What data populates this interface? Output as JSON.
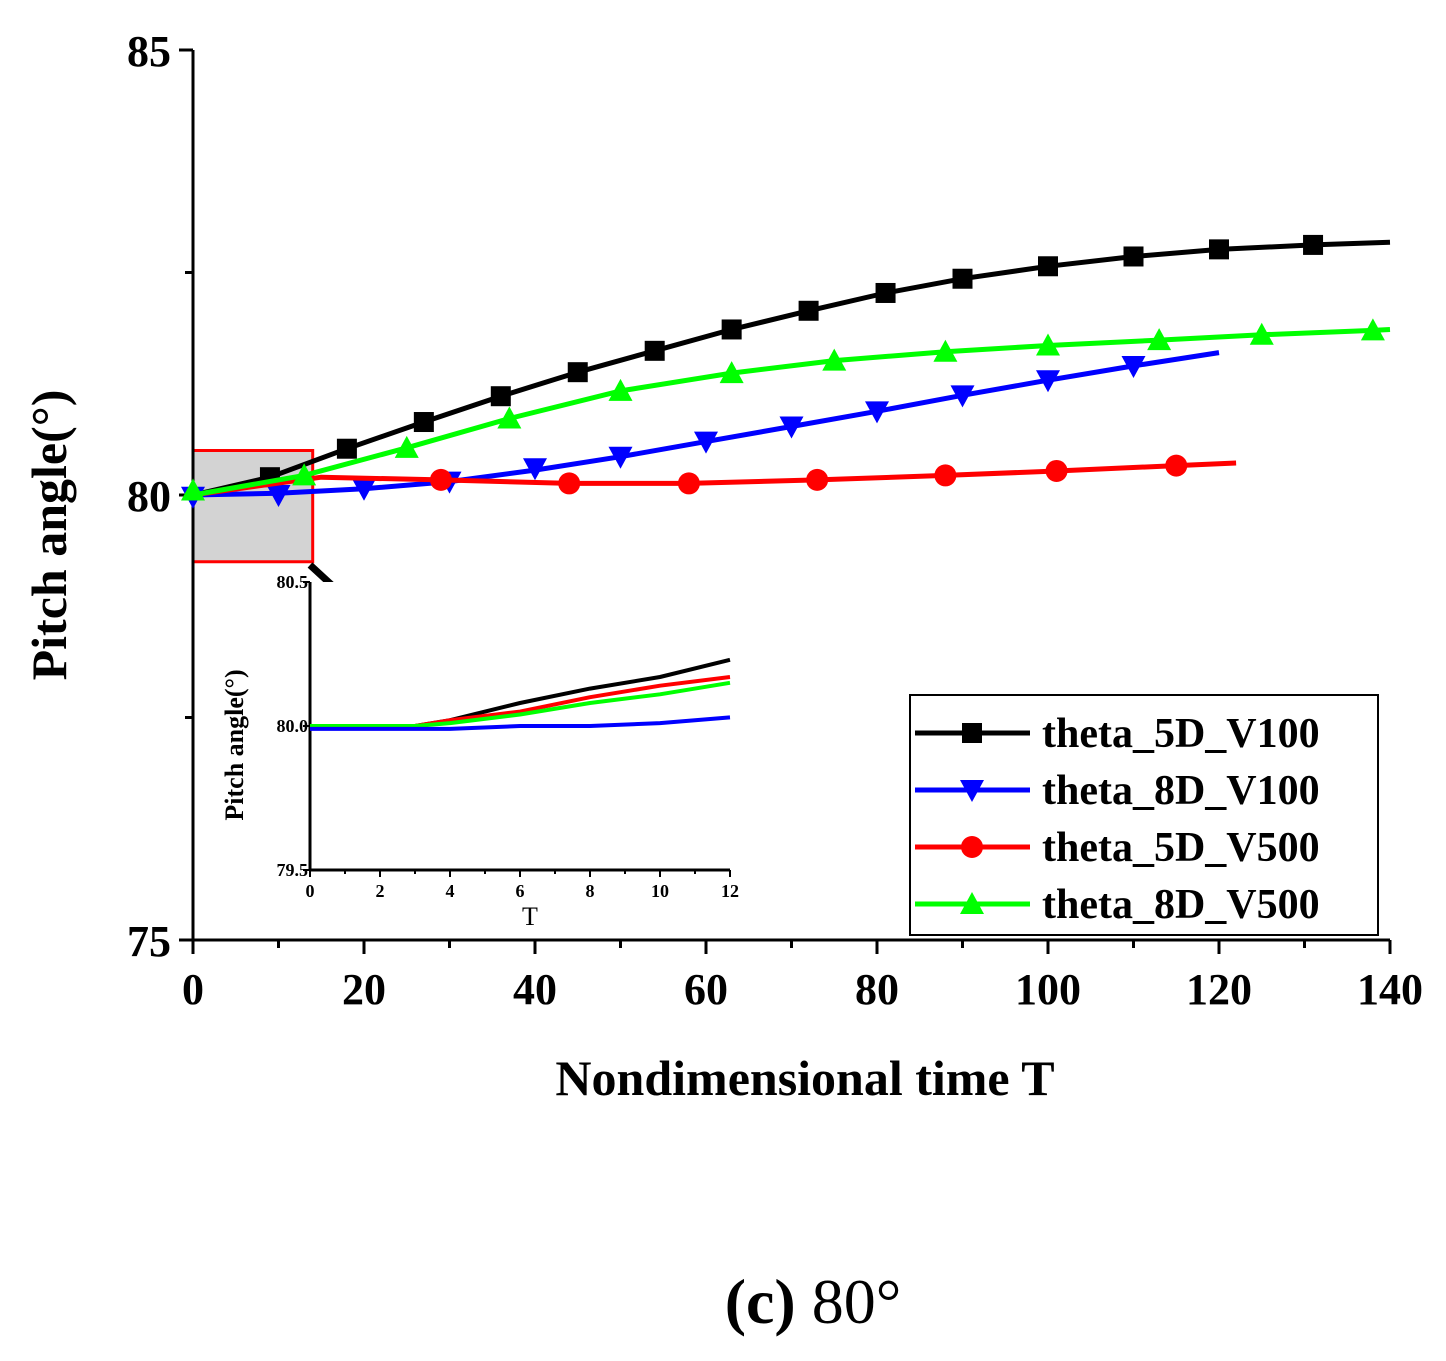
{
  "chart_data": {
    "type": "line",
    "title": "",
    "xlabel": "Nondimensional time T",
    "ylabel": "Pitch angle(°)",
    "xlim": [
      0,
      140
    ],
    "ylim": [
      75,
      85
    ],
    "xticks": [
      "0",
      "20",
      "40",
      "60",
      "80",
      "100",
      "120",
      "140"
    ],
    "yticks": [
      "75",
      "80",
      "85"
    ],
    "legend_position": "bottom-right",
    "series": [
      {
        "name": "theta_5D_V100",
        "color": "#000000",
        "marker": "square",
        "points": [
          [
            0,
            80.0
          ],
          [
            9,
            80.2
          ],
          [
            18,
            80.52
          ],
          [
            27,
            80.82
          ],
          [
            36,
            81.11
          ],
          [
            45,
            81.38
          ],
          [
            54,
            81.62
          ],
          [
            63,
            81.86
          ],
          [
            72,
            82.07
          ],
          [
            81,
            82.27
          ],
          [
            90,
            82.43
          ],
          [
            100,
            82.57
          ],
          [
            110,
            82.68
          ],
          [
            120,
            82.76
          ],
          [
            131,
            82.81
          ],
          [
            140,
            82.84
          ]
        ],
        "markers": [
          [
            9,
            80.2
          ],
          [
            18,
            80.52
          ],
          [
            27,
            80.82
          ],
          [
            36,
            81.11
          ],
          [
            45,
            81.38
          ],
          [
            54,
            81.62
          ],
          [
            63,
            81.86
          ],
          [
            72,
            82.07
          ],
          [
            81,
            82.27
          ],
          [
            90,
            82.43
          ],
          [
            100,
            82.57
          ],
          [
            110,
            82.68
          ],
          [
            120,
            82.76
          ],
          [
            131,
            82.81
          ]
        ]
      },
      {
        "name": "theta_8D_V100",
        "color": "#0000ff",
        "marker": "triangle-down",
        "points": [
          [
            0,
            80.0
          ],
          [
            10,
            80.02
          ],
          [
            20,
            80.07
          ],
          [
            30,
            80.15
          ],
          [
            40,
            80.28
          ],
          [
            50,
            80.43
          ],
          [
            60,
            80.6
          ],
          [
            70,
            80.77
          ],
          [
            80,
            80.94
          ],
          [
            90,
            81.12
          ],
          [
            100,
            81.29
          ],
          [
            110,
            81.45
          ],
          [
            120,
            81.6
          ]
        ],
        "markers": [
          [
            0,
            79.98
          ],
          [
            10,
            80.0
          ],
          [
            20,
            80.07
          ],
          [
            30,
            80.15
          ],
          [
            40,
            80.3
          ],
          [
            50,
            80.43
          ],
          [
            60,
            80.6
          ],
          [
            70,
            80.77
          ],
          [
            80,
            80.94
          ],
          [
            90,
            81.12
          ],
          [
            100,
            81.29
          ],
          [
            110,
            81.45
          ]
        ]
      },
      {
        "name": "theta_5D_V500",
        "color": "#ff0000",
        "marker": "circle",
        "points": [
          [
            0,
            80.0
          ],
          [
            15,
            80.2
          ],
          [
            29,
            80.17
          ],
          [
            44,
            80.13
          ],
          [
            58,
            80.13
          ],
          [
            73,
            80.17
          ],
          [
            88,
            80.22
          ],
          [
            101,
            80.27
          ],
          [
            115,
            80.33
          ],
          [
            122,
            80.36
          ]
        ],
        "markers": [
          [
            29,
            80.17
          ],
          [
            44,
            80.13
          ],
          [
            58,
            80.13
          ],
          [
            73,
            80.17
          ],
          [
            88,
            80.22
          ],
          [
            101,
            80.27
          ],
          [
            115,
            80.33
          ]
        ]
      },
      {
        "name": "theta_8D_V500",
        "color": "#00ff00",
        "marker": "triangle-up",
        "points": [
          [
            0,
            80.0
          ],
          [
            13,
            80.22
          ],
          [
            25,
            80.53
          ],
          [
            37,
            80.86
          ],
          [
            50,
            81.17
          ],
          [
            63,
            81.37
          ],
          [
            75,
            81.51
          ],
          [
            88,
            81.61
          ],
          [
            100,
            81.68
          ],
          [
            113,
            81.74
          ],
          [
            125,
            81.8
          ],
          [
            138,
            81.85
          ],
          [
            140,
            81.86
          ]
        ],
        "markers": [
          [
            0,
            80.05
          ],
          [
            13,
            80.22
          ],
          [
            25,
            80.53
          ],
          [
            37,
            80.86
          ],
          [
            50,
            81.17
          ],
          [
            63,
            81.37
          ],
          [
            75,
            81.51
          ],
          [
            88,
            81.61
          ],
          [
            100,
            81.68
          ],
          [
            113,
            81.74
          ],
          [
            125,
            81.8
          ],
          [
            138,
            81.85
          ]
        ]
      }
    ],
    "zoom_region": {
      "xlim": [
        0,
        14
      ],
      "ylim": [
        79.25,
        80.5
      ]
    },
    "inset": {
      "xlabel": "T",
      "ylabel": "Pitch angle(°)",
      "xlim": [
        0,
        12
      ],
      "ylim": [
        79.5,
        80.5
      ],
      "xticks": [
        "0",
        "2",
        "4",
        "6",
        "8",
        "10",
        "12"
      ],
      "yticks": [
        "79.5",
        "80.0",
        "80.5"
      ],
      "series": [
        {
          "name": "theta_5D_V100",
          "color": "#000000",
          "points": [
            [
              0,
              80.0
            ],
            [
              3,
              80.0
            ],
            [
              4,
              80.02
            ],
            [
              6,
              80.08
            ],
            [
              8,
              80.13
            ],
            [
              10,
              80.17
            ],
            [
              12,
              80.23
            ]
          ]
        },
        {
          "name": "theta_5D_V500",
          "color": "#ff0000",
          "points": [
            [
              0,
              80.0
            ],
            [
              3,
              80.0
            ],
            [
              4,
              80.02
            ],
            [
              6,
              80.05
            ],
            [
              8,
              80.1
            ],
            [
              10,
              80.14
            ],
            [
              12,
              80.17
            ]
          ]
        },
        {
          "name": "theta_8D_V500",
          "color": "#00ff00",
          "points": [
            [
              0,
              80.0
            ],
            [
              3,
              80.0
            ],
            [
              4,
              80.01
            ],
            [
              6,
              80.04
            ],
            [
              8,
              80.08
            ],
            [
              10,
              80.11
            ],
            [
              12,
              80.15
            ]
          ]
        },
        {
          "name": "theta_8D_V100",
          "color": "#0000ff",
          "points": [
            [
              0,
              79.99
            ],
            [
              2,
              79.99
            ],
            [
              4,
              79.99
            ],
            [
              6,
              80.0
            ],
            [
              8,
              80.0
            ],
            [
              10,
              80.01
            ],
            [
              12,
              80.03
            ]
          ]
        }
      ]
    }
  },
  "caption": {
    "label": "(c)",
    "value": "80°"
  }
}
